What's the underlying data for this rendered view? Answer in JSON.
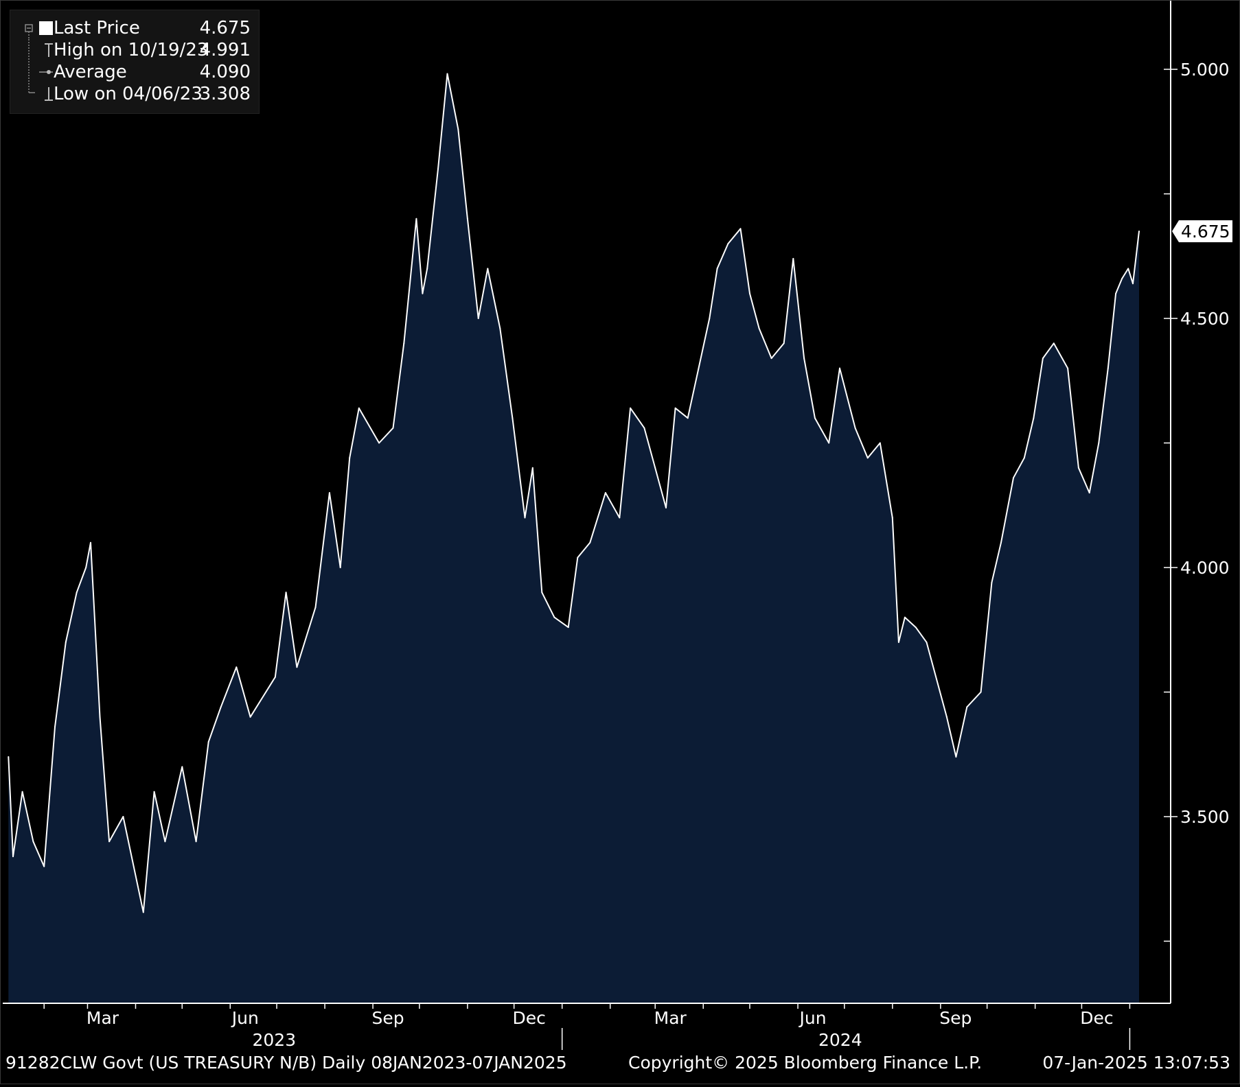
{
  "chart_data": {
    "type": "area",
    "x_range": [
      "2023-01-08",
      "2025-01-07"
    ],
    "ylim": [
      3.25,
      5.15
    ],
    "y_ticks": [
      3.5,
      4.0,
      4.5,
      5.0
    ],
    "y_tick_labels": [
      "3.500",
      "4.000",
      "4.500",
      "5.000"
    ],
    "x_month_labels": [
      {
        "label": "Mar",
        "date": "2023-03-01"
      },
      {
        "label": "Jun",
        "date": "2023-06-01"
      },
      {
        "label": "Sep",
        "date": "2023-09-01"
      },
      {
        "label": "Dec",
        "date": "2023-12-01"
      },
      {
        "label": "Mar",
        "date": "2024-03-01"
      },
      {
        "label": "Jun",
        "date": "2024-06-01"
      },
      {
        "label": "Sep",
        "date": "2024-09-01"
      },
      {
        "label": "Dec",
        "date": "2024-12-01"
      }
    ],
    "x_year_labels": [
      {
        "label": "2023",
        "date": "2023-07-02"
      },
      {
        "label": "2024",
        "date": "2024-07-01"
      }
    ],
    "series": [
      {
        "x": [
          "2023-01-09",
          "2023-01-12",
          "2023-01-18",
          "2023-01-25",
          "2023-02-01",
          "2023-02-08",
          "2023-02-15",
          "2023-02-22",
          "2023-02-28",
          "2023-03-03",
          "2023-03-09",
          "2023-03-15",
          "2023-03-24",
          "2023-04-06",
          "2023-04-13",
          "2023-04-20",
          "2023-05-01",
          "2023-05-10",
          "2023-05-18",
          "2023-05-26",
          "2023-06-05",
          "2023-06-14",
          "2023-06-30",
          "2023-07-07",
          "2023-07-14",
          "2023-07-26",
          "2023-08-04",
          "2023-08-11",
          "2023-08-17",
          "2023-08-23",
          "2023-09-05",
          "2023-09-14",
          "2023-09-21",
          "2023-09-29",
          "2023-10-03",
          "2023-10-06",
          "2023-10-13",
          "2023-10-19",
          "2023-10-26",
          "2023-11-01",
          "2023-11-08",
          "2023-11-14",
          "2023-11-22",
          "2023-11-30",
          "2023-12-08",
          "2023-12-13",
          "2023-12-19",
          "2023-12-27",
          "2024-01-05",
          "2024-01-11",
          "2024-01-19",
          "2024-01-29",
          "2024-02-07",
          "2024-02-14",
          "2024-02-23",
          "2024-03-01",
          "2024-03-08",
          "2024-03-14",
          "2024-03-22",
          "2024-03-29",
          "2024-04-05",
          "2024-04-10",
          "2024-04-17",
          "2024-04-25",
          "2024-05-01",
          "2024-05-07",
          "2024-05-15",
          "2024-05-23",
          "2024-05-29",
          "2024-06-05",
          "2024-06-12",
          "2024-06-21",
          "2024-06-28",
          "2024-07-08",
          "2024-07-16",
          "2024-07-24",
          "2024-08-01",
          "2024-08-05",
          "2024-08-09",
          "2024-08-16",
          "2024-08-23",
          "2024-09-05",
          "2024-09-11",
          "2024-09-18",
          "2024-09-27",
          "2024-10-04",
          "2024-10-10",
          "2024-10-18",
          "2024-10-25",
          "2024-10-31",
          "2024-11-06",
          "2024-11-13",
          "2024-11-22",
          "2024-11-29",
          "2024-12-06",
          "2024-12-12",
          "2024-12-18",
          "2024-12-23",
          "2024-12-27",
          "2024-12-31",
          "2025-01-03",
          "2025-01-07"
        ],
        "y": [
          3.62,
          3.42,
          3.55,
          3.45,
          3.4,
          3.68,
          3.85,
          3.95,
          4.0,
          4.05,
          3.7,
          3.45,
          3.5,
          3.308,
          3.55,
          3.45,
          3.6,
          3.45,
          3.65,
          3.72,
          3.8,
          3.7,
          3.78,
          3.95,
          3.8,
          3.92,
          4.15,
          4.0,
          4.22,
          4.32,
          4.25,
          4.28,
          4.45,
          4.7,
          4.55,
          4.6,
          4.8,
          4.991,
          4.88,
          4.7,
          4.5,
          4.6,
          4.48,
          4.3,
          4.1,
          4.2,
          3.95,
          3.9,
          3.88,
          4.02,
          4.05,
          4.15,
          4.1,
          4.32,
          4.28,
          4.2,
          4.12,
          4.32,
          4.3,
          4.4,
          4.5,
          4.6,
          4.65,
          4.68,
          4.55,
          4.48,
          4.42,
          4.45,
          4.62,
          4.42,
          4.3,
          4.25,
          4.4,
          4.28,
          4.22,
          4.25,
          4.1,
          3.85,
          3.9,
          3.88,
          3.85,
          3.7,
          3.62,
          3.72,
          3.75,
          3.97,
          4.05,
          4.18,
          4.22,
          4.3,
          4.42,
          4.45,
          4.4,
          4.2,
          4.15,
          4.25,
          4.4,
          4.55,
          4.58,
          4.6,
          4.57,
          4.675
        ]
      }
    ],
    "last_value_label": "4.675",
    "legend": [
      {
        "label": "Last Price",
        "value": "4.675"
      },
      {
        "label": "High on 10/19/23",
        "value": "4.991"
      },
      {
        "label": "Average",
        "value": "4.090"
      },
      {
        "label": "Low on 04/06/23",
        "value": "3.308"
      }
    ],
    "colors": {
      "background": "#000000",
      "area_fill": "#0c1c35",
      "line": "#ffffff",
      "axis": "#ffffff",
      "legend_bg": "#141414"
    }
  },
  "footer": {
    "security": "91282CLW Govt (US TREASURY N/B)  Daily 08JAN2023-07JAN2025",
    "copyright": "Copyright© 2025 Bloomberg Finance L.P.",
    "timestamp": "07-Jan-2025 13:07:53"
  }
}
